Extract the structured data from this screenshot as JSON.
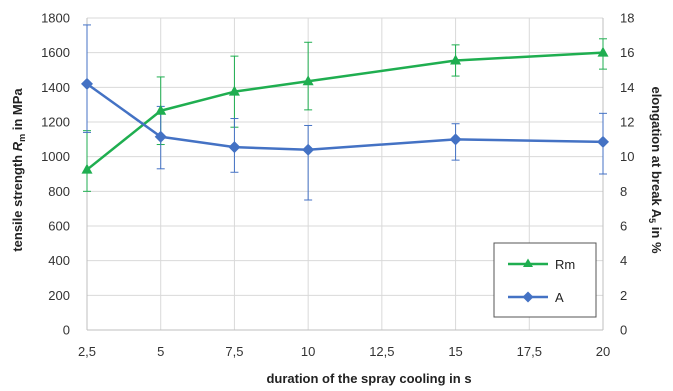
{
  "chart_data": {
    "type": "line",
    "x_axis": {
      "label": "duration of the spray cooling in s",
      "range": [
        2.5,
        20
      ],
      "ticks": [
        "2,5",
        "5",
        "7,5",
        "10",
        "12,5",
        "15",
        "17,5",
        "20"
      ]
    },
    "y_axis_left": {
      "label_prefix": "tensile strength ",
      "label_symbol": "R",
      "label_subscript": "m",
      "label_suffix": " in MPa",
      "range": [
        0,
        1800
      ],
      "ticks": [
        "0",
        "200",
        "400",
        "600",
        "800",
        "1000",
        "1200",
        "1400",
        "1600",
        "1800"
      ]
    },
    "y_axis_right": {
      "label_prefix": "elongation at break A",
      "label_subscript": "5",
      "label_suffix": " in %",
      "range": [
        0,
        18
      ],
      "ticks": [
        "0",
        "2",
        "4",
        "6",
        "8",
        "10",
        "12",
        "14",
        "16",
        "18"
      ]
    },
    "grid": true,
    "legend_position": "bottom-right",
    "series": [
      {
        "name": "Rm",
        "axis": "left",
        "color": "#1fae50",
        "marker": "triangle",
        "x": [
          2.5,
          5,
          7.5,
          10,
          15,
          20
        ],
        "y": [
          925,
          1265,
          1375,
          1435,
          1555,
          1600
        ],
        "err_low": [
          800,
          1070,
          1170,
          1270,
          1465,
          1505
        ],
        "err_high": [
          1150,
          1460,
          1580,
          1660,
          1645,
          1680
        ]
      },
      {
        "name": "A",
        "axis": "right",
        "color": "#4472c4",
        "marker": "diamond",
        "x": [
          2.5,
          5,
          7.5,
          10,
          15,
          20
        ],
        "y": [
          14.2,
          11.15,
          10.55,
          10.4,
          11.0,
          10.85
        ],
        "err_low": [
          11.4,
          9.3,
          9.1,
          7.5,
          9.8,
          9.0
        ],
        "err_high": [
          17.6,
          12.9,
          12.2,
          11.8,
          11.9,
          12.5
        ]
      }
    ]
  }
}
